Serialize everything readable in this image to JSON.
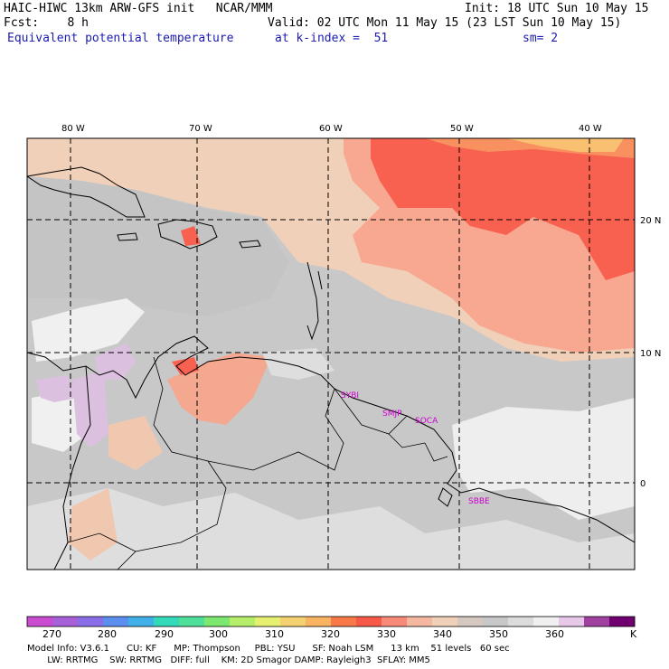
{
  "header": {
    "model_line": "HAIC-HIWC 13km ARW-GFS init   NCAR/MMM",
    "init_line": "Init: 18 UTC Sun 10 May 15",
    "fcst_line": "Fcst:    8 h",
    "valid_line": "Valid: 02 UTC Mon 11 May 15 (23 LST Sun 10 May 15)",
    "field_name": "Equivalent potential temperature",
    "level_line": "at k-index =  51",
    "smooth_line": "sm= 2"
  },
  "map": {
    "lon_labels": [
      "80 W",
      "70 W",
      "60 W",
      "50 W",
      "40 W"
    ],
    "lat_labels": [
      "20 N",
      "10 N",
      "0"
    ],
    "stations": [
      "SYBI",
      "SMJP",
      "SOCA",
      "SBBE"
    ]
  },
  "colorbar": {
    "labels": [
      "270",
      "280",
      "290",
      "300",
      "310",
      "320",
      "330",
      "340",
      "350",
      "360",
      "K"
    ],
    "colors": [
      "#c94bd0",
      "#a860d8",
      "#8a6ee8",
      "#5c8ef0",
      "#3fb0e8",
      "#33d9b8",
      "#4ee09a",
      "#7de870",
      "#b6ee6a",
      "#e6f070",
      "#f4d070",
      "#f8b460",
      "#f87848",
      "#f85848",
      "#f88878",
      "#f4b8a0",
      "#f0d0b8",
      "#d4c8c0",
      "#c8c8c8",
      "#dcdcdc",
      "#f0f0f0",
      "#e8c8e8",
      "#a040a0",
      "#700070"
    ]
  },
  "footer": {
    "line1": "Model Info: V3.6.1      CU: KF      MP: Thompson     PBL: YSU      SF: Noah LSM      13 km    51 levels   60 sec",
    "line2": "       LW: RRTMG    SW: RRTMG   DIFF: full    KM: 2D Smagor DAMP: Rayleigh3  SFLAY: MM5"
  }
}
